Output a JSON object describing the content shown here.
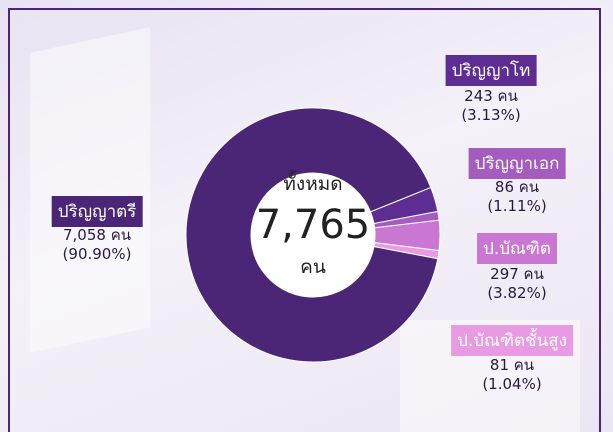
{
  "chart_data": {
    "type": "donut",
    "center": {
      "title": "ทั้งหมด",
      "total": "7,765",
      "unit": "คน"
    },
    "categories": [
      "ปริญญาตรี",
      "ปริญญาโท",
      "ปริญญาเอก",
      "ป.บัณฑิต",
      "ป.บัณฑิตชั้นสูง"
    ],
    "values": [
      7058,
      243,
      86,
      297,
      81
    ],
    "value_labels": [
      "7,058 คน",
      "243 คน",
      "86 คน",
      "297 คน",
      "81 คน"
    ],
    "percent_labels": [
      "(90.90%)",
      "(3.13%)",
      "(1.11%)",
      "(3.82%)",
      "(1.04%)"
    ],
    "colors": [
      "#4b2676",
      "#5e2d92",
      "#a45cbf",
      "#c977d3",
      "#e89ae2"
    ]
  }
}
